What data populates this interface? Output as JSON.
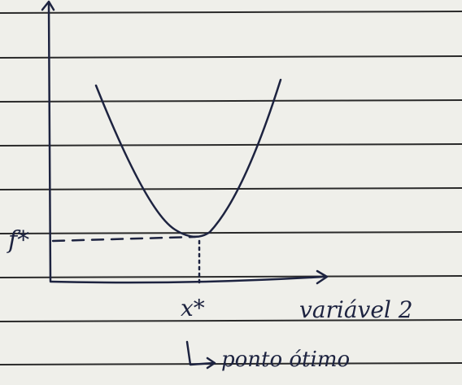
{
  "labels": {
    "y_value": "f*",
    "x_value": "x*",
    "x_axis": "variável 2",
    "note": "ponto ótimo"
  }
}
